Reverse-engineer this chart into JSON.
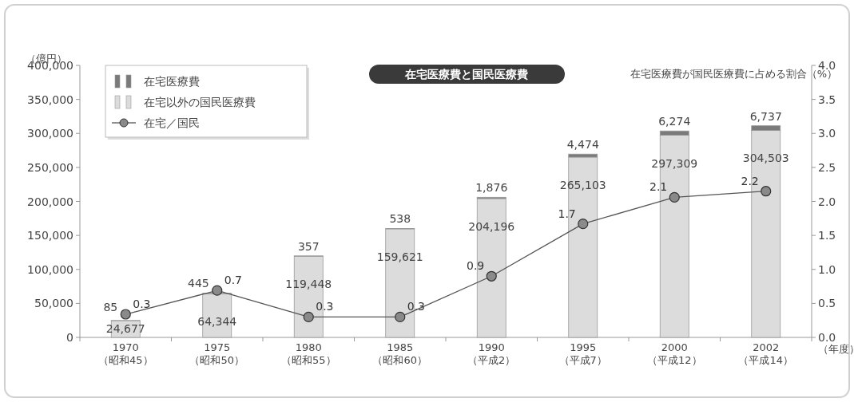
{
  "chart_data": {
    "type": "bar",
    "stacked": true,
    "title": "在宅医療費と国民医療費",
    "ylabel": "（億円）",
    "y2label": "在宅医療費が国民医療費に占める割合（%）",
    "xlabel": "（年度）",
    "categories": [
      "1970\n（昭和45）",
      "1975\n（昭和50）",
      "1980\n（昭和55）",
      "1985\n（昭和60）",
      "1990\n（平成2）",
      "1995\n（平成7）",
      "2000\n（平成12）",
      "2002\n（平成14）"
    ],
    "series": [
      {
        "name": "在宅以外の国民医療費",
        "color": "#dcdcdc",
        "values": [
          24677,
          64344,
          119448,
          159621,
          204196,
          265103,
          297309,
          304503
        ],
        "value_labels": [
          "24,677",
          "64,344",
          "119,448",
          "159,621",
          "204,196",
          "265,103",
          "297,309",
          "304,503"
        ]
      },
      {
        "name": "在宅医療費",
        "color": "#7a7a7a",
        "values": [
          85,
          445,
          357,
          538,
          1876,
          4474,
          6274,
          6737
        ],
        "value_labels": [
          "85",
          "445",
          "357",
          "538",
          "1,876",
          "4,474",
          "6,274",
          "6,737"
        ]
      },
      {
        "name": "在宅／国民",
        "type": "line",
        "axis": "y2",
        "color": "#555555",
        "values": [
          0.34,
          0.69,
          0.3,
          0.3,
          0.9,
          1.67,
          2.06,
          2.15
        ],
        "value_labels": [
          "0.3",
          "0.7",
          "0.3",
          "0.3",
          "0.9",
          "1.7",
          "2.1",
          "2.2"
        ]
      }
    ],
    "ylim": [
      0,
      400000
    ],
    "yticks": [
      {
        "value": 0,
        "label": "0"
      },
      {
        "value": 50000,
        "label": "50,000"
      },
      {
        "value": 100000,
        "label": "100,000"
      },
      {
        "value": 150000,
        "label": "150,000"
      },
      {
        "value": 200000,
        "label": "200,000"
      },
      {
        "value": 250000,
        "label": "250,000"
      },
      {
        "value": 300000,
        "label": "300,000"
      },
      {
        "value": 350000,
        "label": "350,000"
      },
      {
        "value": 400000,
        "label": "400,000"
      }
    ],
    "y2lim": [
      0,
      4
    ],
    "y2ticks": [
      {
        "value": 0,
        "label": "0.0"
      },
      {
        "value": 0.5,
        "label": "0.5"
      },
      {
        "value": 1,
        "label": "1.0"
      },
      {
        "value": 1.5,
        "label": "1.5"
      },
      {
        "value": 2,
        "label": "2.0"
      },
      {
        "value": 2.5,
        "label": "2.5"
      },
      {
        "value": 3,
        "label": "3.0"
      },
      {
        "value": 3.5,
        "label": "3.5"
      },
      {
        "value": 4,
        "label": "4.0"
      }
    ],
    "legend": "top left",
    "marker": "circle"
  }
}
